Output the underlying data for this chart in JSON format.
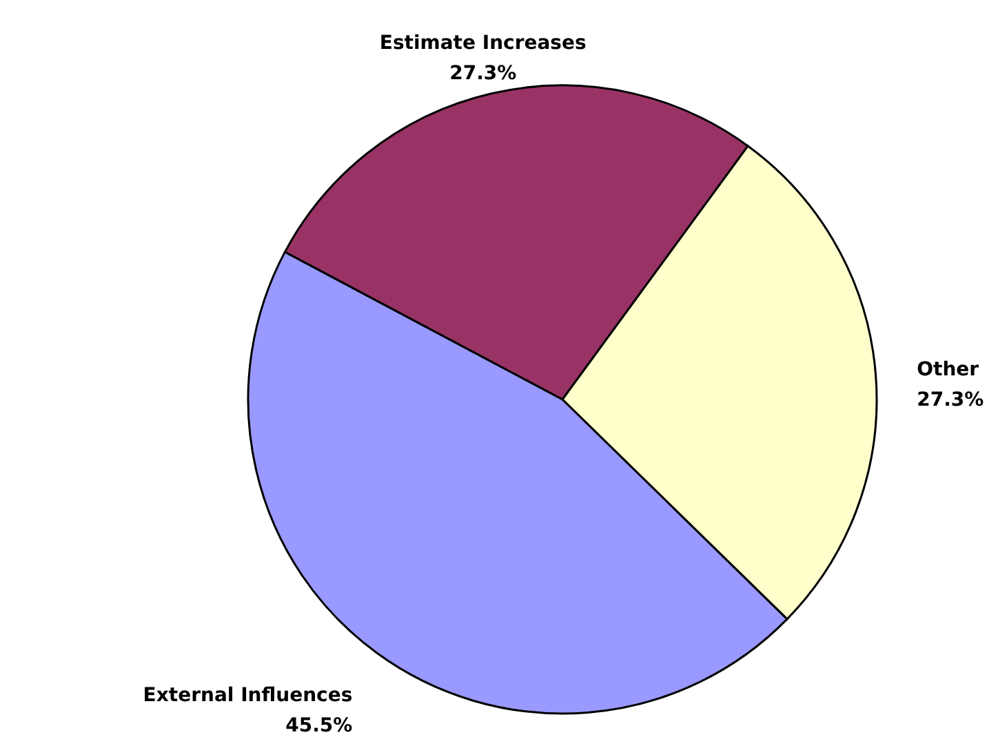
{
  "chart_data": {
    "type": "pie",
    "categories": [
      "Estimate Increases",
      "Other",
      "External Influences"
    ],
    "values": [
      27.3,
      27.3,
      45.5
    ],
    "colors": [
      "#993366",
      "#ffffcc",
      "#9999ff"
    ],
    "value_labels": [
      "27.3%",
      "27.3%",
      "45.5%"
    ],
    "legend": false
  }
}
